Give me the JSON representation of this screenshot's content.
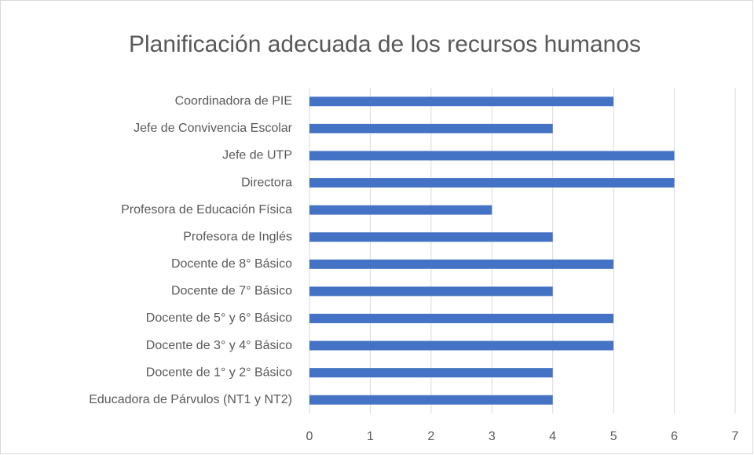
{
  "chart_data": {
    "type": "bar",
    "orientation": "horizontal",
    "title": "Planificación adecuada de los recursos humanos",
    "categories": [
      "Coordinadora de PIE",
      "Jefe de Convivencia Escolar",
      "Jefe de UTP",
      "Directora",
      "Profesora de Educación Física",
      "Profesora de Inglés",
      "Docente de 8° Básico",
      "Docente de 7° Básico",
      "Docente de 5° y 6° Básico",
      "Docente de 3° y 4° Básico",
      "Docente de 1° y 2° Básico",
      "Educadora de Párvulos (NT1 y NT2)"
    ],
    "values": [
      5,
      4,
      6,
      6,
      3,
      4,
      5,
      4,
      5,
      5,
      4,
      4
    ],
    "color": "#4472c4",
    "xlim": [
      0,
      7
    ],
    "xticks": [
      0,
      1,
      2,
      3,
      4,
      5,
      6,
      7
    ],
    "grid": true
  }
}
